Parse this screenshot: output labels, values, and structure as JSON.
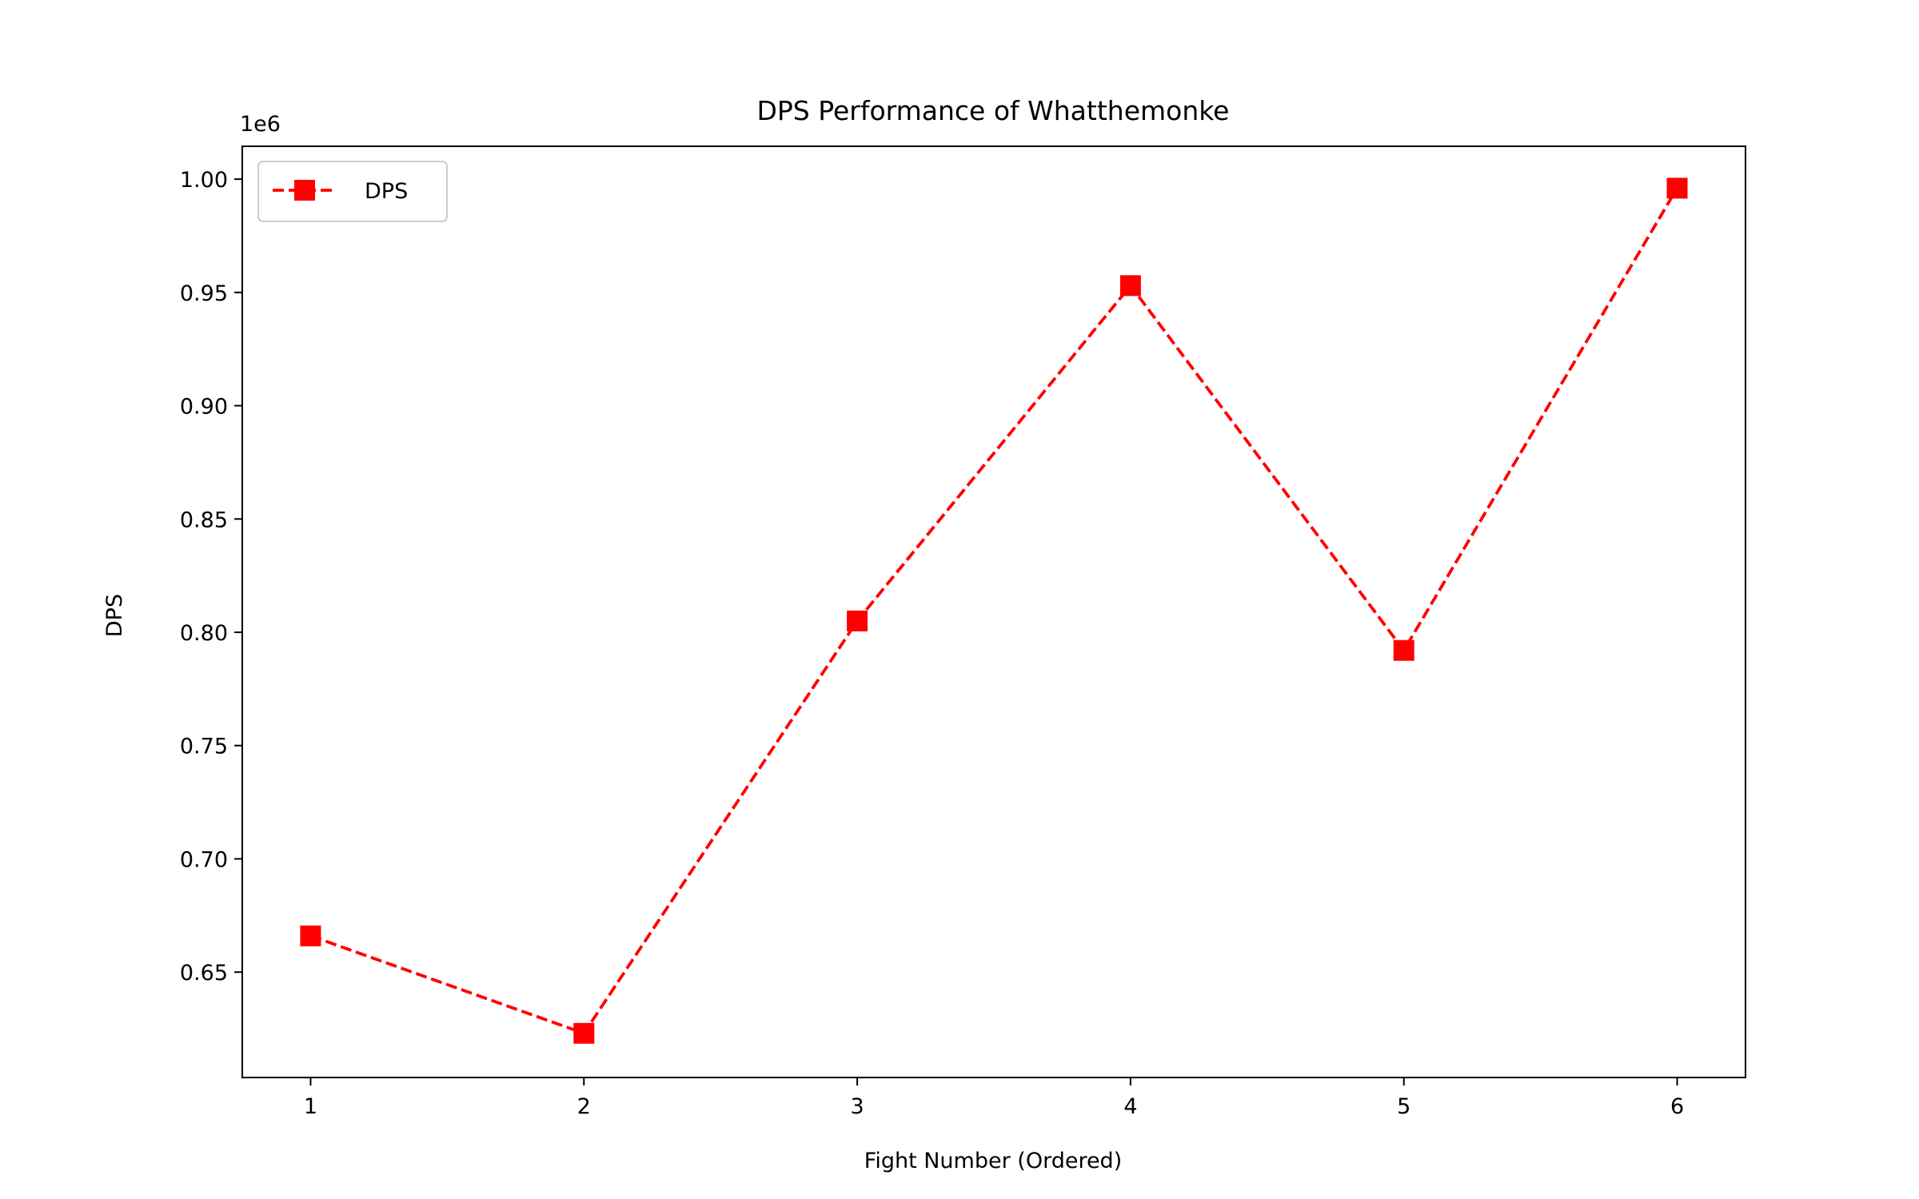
{
  "chart_data": {
    "type": "line",
    "title": "DPS Performance of Whatthemonke",
    "xlabel": "Fight Number (Ordered)",
    "ylabel": "DPS",
    "y_offset_label": "1e6",
    "x": [
      1,
      2,
      3,
      4,
      5,
      6
    ],
    "x_tick_labels": [
      "1",
      "2",
      "3",
      "4",
      "5",
      "6"
    ],
    "xlim": [
      0.75,
      6.25
    ],
    "ylim": [
      0.6035,
      1.0145
    ],
    "y_ticks": [
      0.65,
      0.7,
      0.75,
      0.8,
      0.85,
      0.9,
      0.95,
      1.0
    ],
    "y_tick_labels": [
      "0.65",
      "0.70",
      "0.75",
      "0.80",
      "0.85",
      "0.90",
      "0.95",
      "1.00"
    ],
    "series": [
      {
        "name": "DPS",
        "values": [
          0.666,
          0.623,
          0.805,
          0.953,
          0.792,
          0.996
        ],
        "color": "#ff0000",
        "line_style": "dashed",
        "marker": "square"
      }
    ],
    "legend": {
      "position": "upper-left",
      "entries": [
        "DPS"
      ]
    },
    "grid": false
  }
}
